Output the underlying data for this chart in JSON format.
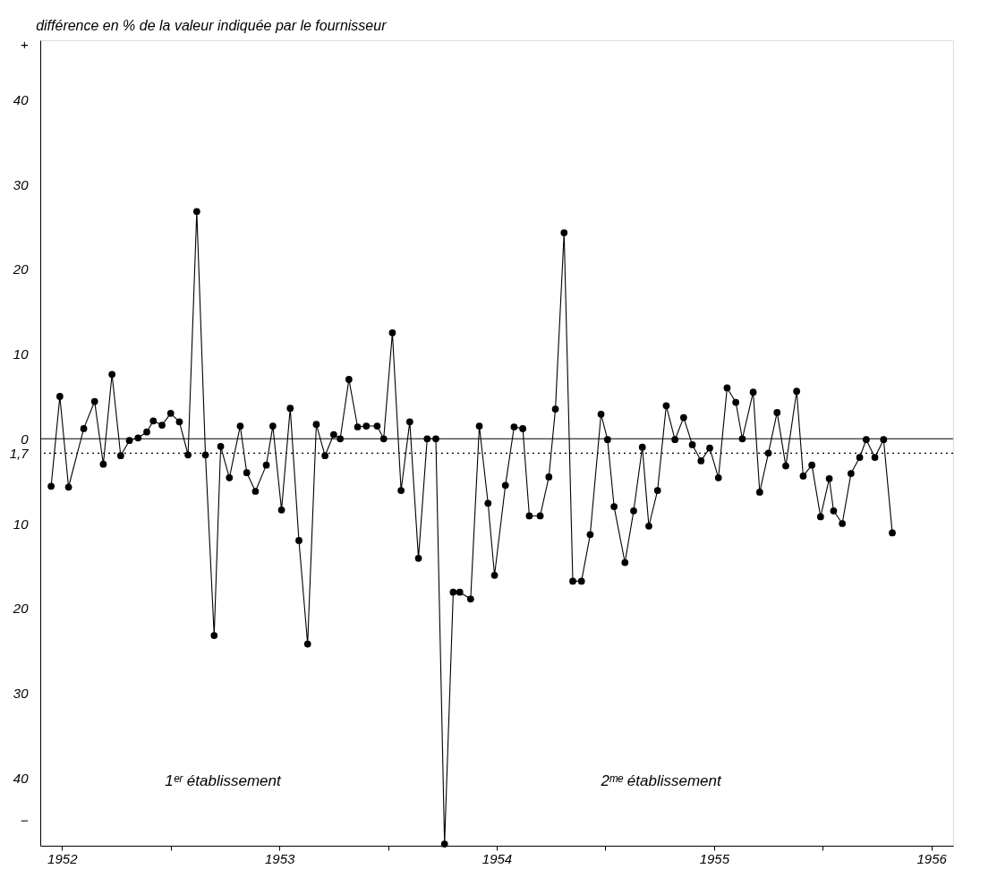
{
  "chart_data": {
    "type": "line",
    "title": "différence en % de la valeur indiquée par le fournisseur",
    "x": [
      1951.95,
      1951.99,
      1952.03,
      1952.1,
      1952.15,
      1952.19,
      1952.23,
      1952.27,
      1952.31,
      1952.35,
      1952.39,
      1952.42,
      1952.46,
      1952.5,
      1952.54,
      1952.58,
      1952.62,
      1952.66,
      1952.7,
      1952.73,
      1952.77,
      1952.82,
      1952.85,
      1952.89,
      1952.94,
      1952.97,
      1953.01,
      1953.05,
      1953.09,
      1953.13,
      1953.17,
      1953.21,
      1953.25,
      1953.28,
      1953.32,
      1953.36,
      1953.4,
      1953.45,
      1953.48,
      1953.52,
      1953.56,
      1953.6,
      1953.64,
      1953.68,
      1953.72,
      1953.76,
      1953.8,
      1953.83,
      1953.88,
      1953.92,
      1953.96,
      1953.99,
      1954.04,
      1954.08,
      1954.12,
      1954.15,
      1954.2,
      1954.24,
      1954.27,
      1954.31,
      1954.35,
      1954.39,
      1954.43,
      1954.48,
      1954.51,
      1954.54,
      1954.59,
      1954.63,
      1954.67,
      1954.7,
      1954.74,
      1954.78,
      1954.82,
      1954.86,
      1954.9,
      1954.94,
      1954.98,
      1955.02,
      1955.06,
      1955.1,
      1955.13,
      1955.18,
      1955.21,
      1955.25,
      1955.29,
      1955.33,
      1955.38,
      1955.41,
      1955.45,
      1955.49,
      1955.53,
      1955.55,
      1955.59,
      1955.63,
      1955.67,
      1955.7,
      1955.74,
      1955.78,
      1955.82
    ],
    "series": [
      {
        "color": "#000000",
        "values": [
          -5.6,
          5.0,
          -5.7,
          1.2,
          4.4,
          -3.0,
          7.6,
          -2.0,
          -0.2,
          0.1,
          0.8,
          2.1,
          1.6,
          3.0,
          2.0,
          -1.9,
          26.8,
          -1.9,
          -23.2,
          -0.9,
          -4.6,
          1.5,
          -4.0,
          -6.2,
          -3.1,
          1.5,
          -8.4,
          3.6,
          -12.0,
          -24.2,
          1.7,
          -2.0,
          0.5,
          0.0,
          7.0,
          1.4,
          1.5,
          1.5,
          0.0,
          12.5,
          -6.1,
          2.0,
          -14.1,
          0.0,
          0.0,
          -47.8,
          -18.1,
          -18.1,
          -18.9,
          1.5,
          -7.6,
          -16.1,
          -5.5,
          1.4,
          1.2,
          -9.1,
          -9.1,
          -4.5,
          3.5,
          24.3,
          -16.8,
          -16.8,
          -11.3,
          2.9,
          -0.1,
          -8.0,
          -14.6,
          -8.5,
          -1.0,
          -10.3,
          -6.1,
          3.9,
          -0.1,
          2.5,
          -0.7,
          -2.6,
          -1.1,
          -4.6,
          6.0,
          4.3,
          0.0,
          5.5,
          -6.3,
          -1.7,
          3.1,
          -3.2,
          5.6,
          -4.4,
          -3.1,
          -9.2,
          -4.7,
          -8.5,
          -10.0,
          -4.1,
          -2.2,
          -0.1,
          -2.2,
          -0.1,
          -11.1
        ]
      }
    ],
    "xlim": [
      1951.9,
      1956.1
    ],
    "xticks": [
      1952,
      {
        "value": 1952.5,
        "label": null
      },
      1953,
      {
        "value": 1953.5,
        "label": null
      },
      1954,
      {
        "value": 1954.5,
        "label": null
      },
      1955,
      {
        "value": 1955.5,
        "label": null
      },
      1956
    ],
    "ylim": [
      -48,
      47
    ],
    "yticks": [
      {
        "value": 46.5,
        "label": "+"
      },
      40,
      30,
      20,
      10,
      0,
      {
        "value": -1.7,
        "label": "1,7"
      },
      {
        "value": -10,
        "label": "10"
      },
      {
        "value": -20,
        "label": "20"
      },
      {
        "value": -30,
        "label": "30"
      },
      {
        "value": -40,
        "label": "40"
      },
      {
        "value": -45,
        "label": "−"
      }
    ],
    "ref_lines": [
      {
        "axis": "y",
        "value": 0,
        "line_style": "solid"
      },
      {
        "axis": "y",
        "value": -1.7,
        "line_style": "dotted"
      }
    ],
    "annotations": [
      "1ᵉʳ établissement",
      "2ᵐᵉ établissement"
    ],
    "marker": "circle",
    "line_style": "solid"
  }
}
